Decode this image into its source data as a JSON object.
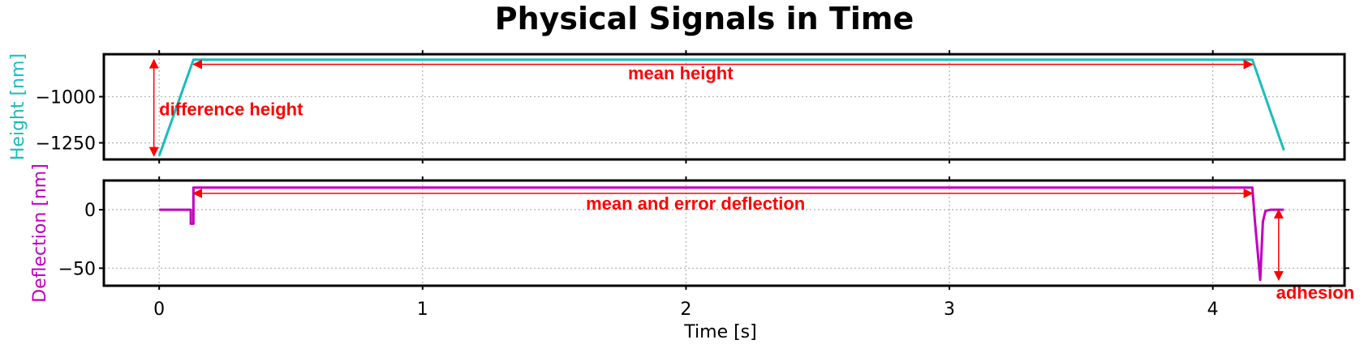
{
  "chart_data": {
    "title": "Physical Signals in Time",
    "type": "line",
    "xlabel": "Time [s]",
    "xlim": [
      -0.21,
      4.5
    ],
    "xticks": [
      0,
      1,
      2,
      3,
      4
    ],
    "grid": true,
    "annotation_color": "#ff0000",
    "panels": [
      {
        "name": "height",
        "ylabel": "Height [nm]",
        "color": "#17bebb",
        "ylim": [
          -1340,
          -770
        ],
        "yticks": [
          -1000,
          -1250
        ],
        "series": [
          {
            "x": [
              0,
              0.13,
              4.15,
              4.27
            ],
            "y": [
              -1320,
              -800,
              -800,
              -1290
            ]
          }
        ],
        "annotations": [
          {
            "text": "difference height",
            "type": "vertical-arrow",
            "x": -0.02,
            "y_from": -1320,
            "y_to": -800,
            "label_x": 0.0,
            "label_y": -1100
          },
          {
            "text": "mean height",
            "type": "horizontal-arrow",
            "x_from": 0.13,
            "x_to": 4.15,
            "y": -825,
            "label_x": 1.78,
            "label_y": -905
          }
        ]
      },
      {
        "name": "deflection",
        "ylabel": "Deflection [nm]",
        "color": "#c000c0",
        "ylim": [
          -65,
          25
        ],
        "yticks": [
          0,
          -50
        ],
        "series": [
          {
            "x": [
              0,
              0.12,
              0.12,
              0.13,
              0.13,
              4.15,
              4.16,
              4.18,
              4.19,
              4.2,
              4.22,
              4.27
            ],
            "y": [
              0,
              0,
              -12,
              -12,
              19,
              19,
              -10,
              -60,
              -10,
              -1,
              0,
              0
            ]
          }
        ],
        "annotations": [
          {
            "text": "mean and error deflection",
            "type": "horizontal-arrow",
            "x_from": 0.13,
            "x_to": 4.15,
            "y": 14,
            "label_x": 1.62,
            "label_y": 0
          },
          {
            "text": "adhesion",
            "type": "vertical-arrow",
            "x": 4.25,
            "y_from": 0,
            "y_to": -60,
            "label_x": 4.24,
            "label_y": -76
          }
        ]
      }
    ]
  }
}
